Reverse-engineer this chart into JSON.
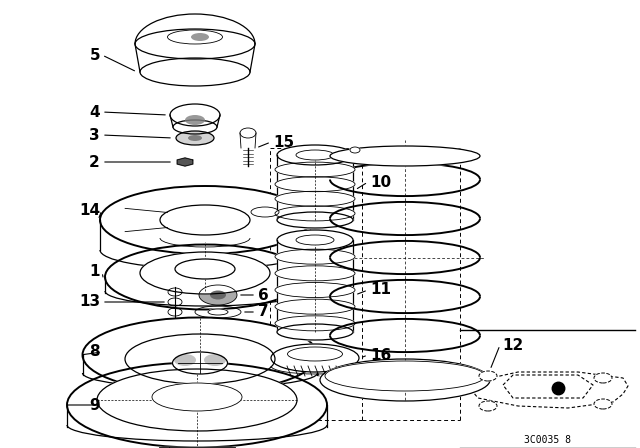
{
  "bg_color": "#ffffff",
  "line_color": "#000000",
  "fig_width": 6.4,
  "fig_height": 4.48,
  "dpi": 100,
  "code_text": "3C0035 8"
}
